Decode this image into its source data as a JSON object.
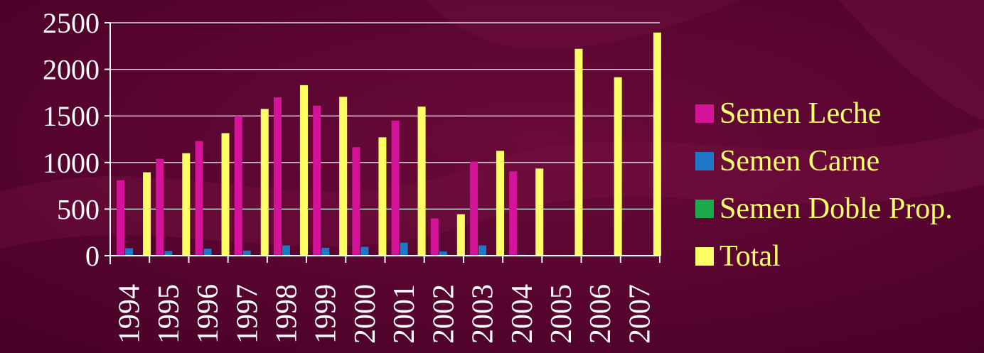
{
  "chart_data": {
    "type": "bar",
    "title": "",
    "xlabel": "",
    "ylabel": "",
    "ylim": [
      0,
      2500
    ],
    "yticks": [
      0,
      500,
      1000,
      1500,
      2000,
      2500
    ],
    "grid": true,
    "legend_position": "right",
    "categories": [
      "1994",
      "1995",
      "1996",
      "1997",
      "1998",
      "1999",
      "2000",
      "2001",
      "2002",
      "2003",
      "2004",
      "2005",
      "2006",
      "2007"
    ],
    "series": [
      {
        "name": "Semen Leche",
        "color": "#d4129a",
        "values": [
          810,
          1040,
          1230,
          1500,
          1700,
          1610,
          1165,
          1450,
          400,
          1010,
          905,
          0,
          0,
          0
        ]
      },
      {
        "name": "Semen Carne",
        "color": "#1e78c8",
        "values": [
          80,
          50,
          75,
          55,
          110,
          85,
          95,
          140,
          45,
          110,
          10,
          0,
          0,
          0
        ]
      },
      {
        "name": "Semen Doble Prop.",
        "color": "#1aaa4a",
        "values": [
          0,
          0,
          0,
          0,
          0,
          0,
          0,
          0,
          0,
          0,
          0,
          0,
          0,
          0
        ]
      },
      {
        "name": "Total",
        "color": "#ffff66",
        "values": [
          895,
          1100,
          1315,
          1575,
          1830,
          1705,
          1270,
          1600,
          445,
          1125,
          935,
          2220,
          1915,
          2395
        ]
      }
    ]
  }
}
